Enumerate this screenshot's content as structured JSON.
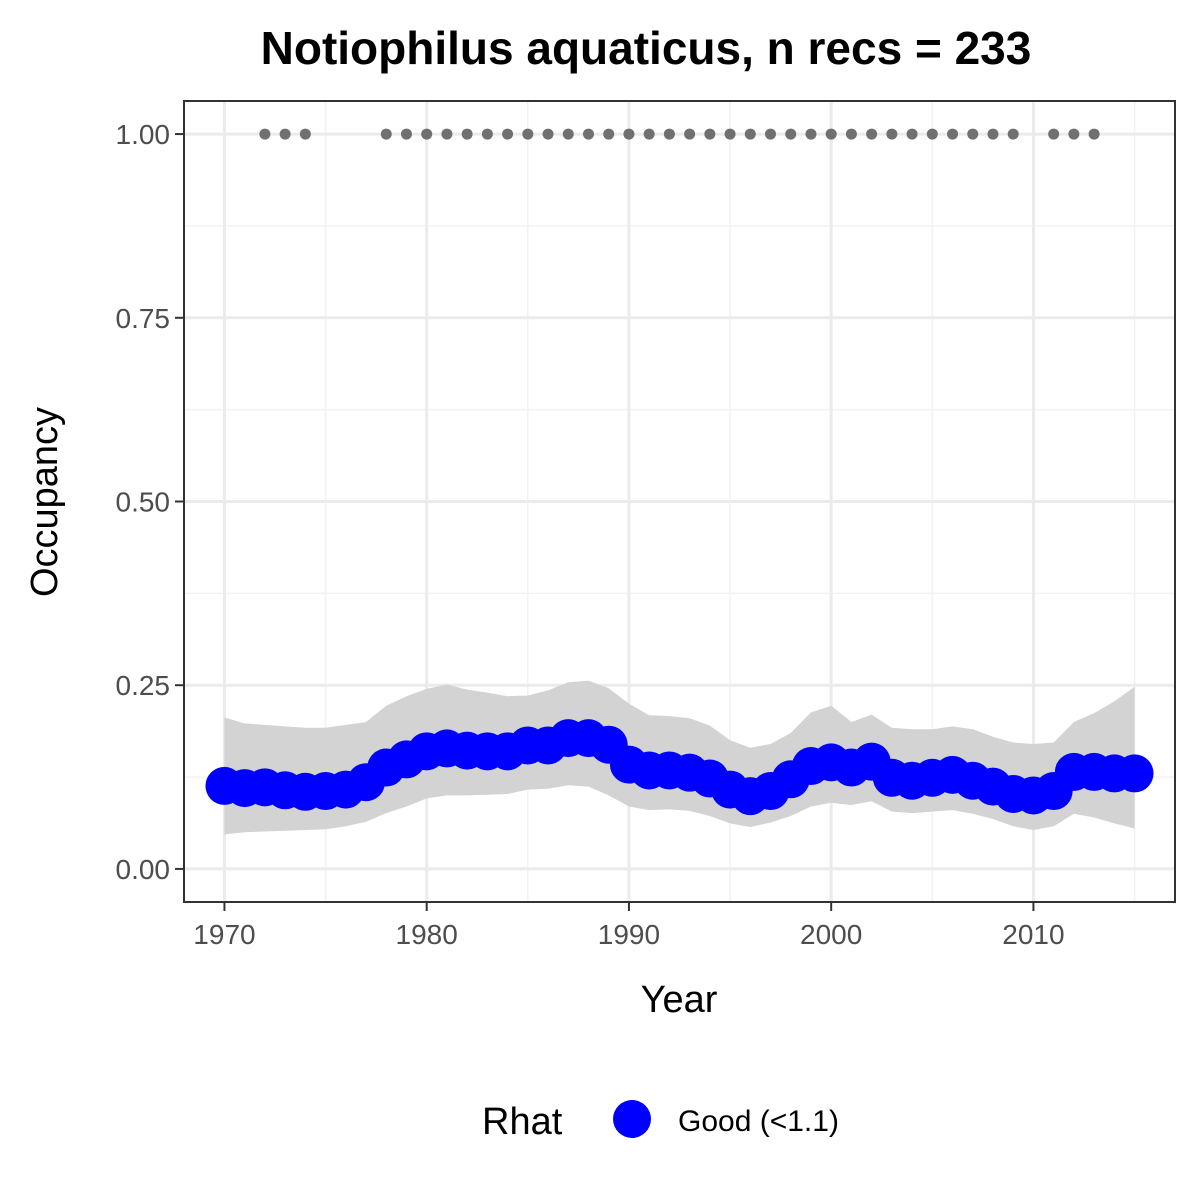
{
  "chart_data": {
    "type": "line",
    "title": "Notiophilus aquaticus, n recs = 233",
    "xlabel": "Year",
    "ylabel": "Occupancy",
    "xlim": [
      1968,
      2017
    ],
    "ylim": [
      -0.045,
      1.045
    ],
    "x_ticks": [
      1970,
      1980,
      1990,
      2000,
      2010
    ],
    "x_tick_labels": [
      "1970",
      "1980",
      "1990",
      "2000",
      "2010"
    ],
    "y_ticks": [
      0,
      0.25,
      0.5,
      0.75,
      1.0
    ],
    "y_tick_labels": [
      "0.00",
      "0.25",
      "0.50",
      "0.75",
      "1.00"
    ],
    "grid": true,
    "series": [
      {
        "name": "Good (<1.1)",
        "color": "#0000ff",
        "x": [
          1970,
          1971,
          1972,
          1973,
          1974,
          1975,
          1976,
          1977,
          1978,
          1979,
          1980,
          1981,
          1982,
          1983,
          1984,
          1985,
          1986,
          1987,
          1988,
          1989,
          1990,
          1991,
          1992,
          1993,
          1994,
          1995,
          1996,
          1997,
          1998,
          1999,
          2000,
          2001,
          2002,
          2003,
          2004,
          2005,
          2006,
          2007,
          2008,
          2009,
          2010,
          2011,
          2012,
          2013,
          2014,
          2015
        ],
        "y": [
          0.113,
          0.11,
          0.111,
          0.107,
          0.105,
          0.106,
          0.108,
          0.118,
          0.138,
          0.149,
          0.16,
          0.164,
          0.161,
          0.16,
          0.16,
          0.168,
          0.168,
          0.178,
          0.178,
          0.169,
          0.142,
          0.134,
          0.134,
          0.131,
          0.123,
          0.108,
          0.099,
          0.106,
          0.122,
          0.14,
          0.145,
          0.138,
          0.146,
          0.124,
          0.12,
          0.124,
          0.128,
          0.12,
          0.112,
          0.102,
          0.1,
          0.106,
          0.132,
          0.132,
          0.13,
          0.13
        ],
        "lower": [
          0.047,
          0.05,
          0.051,
          0.052,
          0.053,
          0.054,
          0.058,
          0.064,
          0.076,
          0.085,
          0.096,
          0.1,
          0.1,
          0.101,
          0.102,
          0.108,
          0.109,
          0.114,
          0.112,
          0.1,
          0.085,
          0.08,
          0.081,
          0.079,
          0.072,
          0.062,
          0.057,
          0.063,
          0.072,
          0.085,
          0.09,
          0.087,
          0.092,
          0.078,
          0.076,
          0.078,
          0.08,
          0.075,
          0.068,
          0.058,
          0.053,
          0.058,
          0.075,
          0.07,
          0.062,
          0.055
        ],
        "upper": [
          0.206,
          0.198,
          0.196,
          0.194,
          0.192,
          0.192,
          0.196,
          0.2,
          0.222,
          0.235,
          0.245,
          0.251,
          0.244,
          0.24,
          0.235,
          0.236,
          0.243,
          0.254,
          0.256,
          0.246,
          0.225,
          0.209,
          0.208,
          0.205,
          0.195,
          0.175,
          0.165,
          0.17,
          0.185,
          0.213,
          0.222,
          0.2,
          0.21,
          0.192,
          0.19,
          0.19,
          0.194,
          0.19,
          0.18,
          0.172,
          0.17,
          0.172,
          0.2,
          0.212,
          0.228,
          0.248
        ]
      }
    ],
    "record_years": {
      "y": 1.0,
      "color": "#707070",
      "x": [
        1972,
        1973,
        1974,
        1978,
        1979,
        1980,
        1981,
        1982,
        1983,
        1984,
        1985,
        1986,
        1987,
        1988,
        1989,
        1990,
        1991,
        1992,
        1993,
        1994,
        1995,
        1996,
        1997,
        1998,
        1999,
        2000,
        2001,
        2002,
        2003,
        2004,
        2005,
        2006,
        2007,
        2008,
        2009,
        2011,
        2012,
        2013
      ]
    },
    "ribbon_color": "#d3d3d3",
    "legend": {
      "title": "Rhat",
      "position": "bottom",
      "items": [
        {
          "label": "Good (<1.1)",
          "color": "#0000ff"
        }
      ]
    }
  }
}
